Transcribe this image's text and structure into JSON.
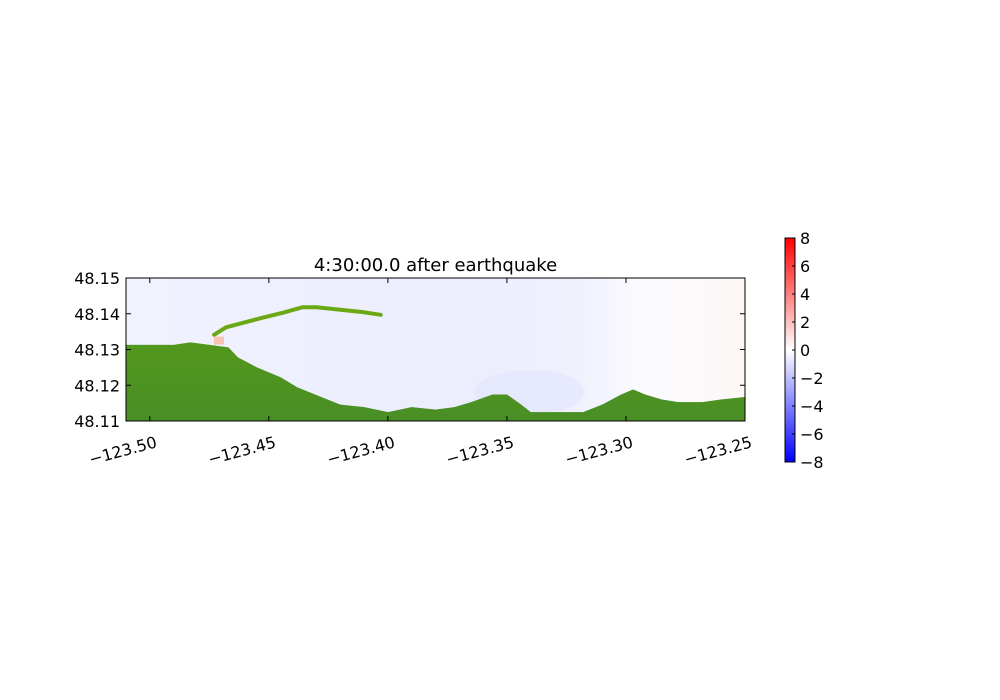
{
  "chart_data": {
    "type": "heatmap",
    "title": "4:30:00.0 after earthquake",
    "xlabel": "",
    "ylabel": "",
    "xlim": [
      -123.51,
      -123.25
    ],
    "ylim": [
      48.11,
      48.15
    ],
    "x_ticks": [
      -123.5,
      -123.45,
      -123.4,
      -123.35,
      -123.3,
      -123.25
    ],
    "x_tick_labels": [
      "−123.50",
      "−123.45",
      "−123.40",
      "−123.35",
      "−123.30",
      "−123.25"
    ],
    "y_ticks": [
      48.11,
      48.12,
      48.13,
      48.14,
      48.15
    ],
    "y_tick_labels": [
      "48.11",
      "48.12",
      "48.13",
      "48.14",
      "48.15"
    ],
    "colorbar": {
      "range": [
        -8,
        8
      ],
      "ticks": [
        8,
        6,
        4,
        2,
        0,
        -2,
        -4,
        -6,
        -8
      ],
      "tick_labels": [
        "8",
        "6",
        "4",
        "2",
        "0",
        "−2",
        "−4",
        "−6",
        "−8"
      ],
      "colormap": [
        "#0000ff",
        "#ffffff",
        "#ff0000"
      ]
    },
    "land_color": "#6aa814",
    "land_dark_color": "#2e7d32",
    "coastline": [
      [
        -123.51,
        48.1313
      ],
      [
        -123.49,
        48.1313
      ],
      [
        -123.483,
        48.132
      ],
      [
        -123.475,
        48.1313
      ],
      [
        -123.467,
        48.1306
      ],
      [
        -123.463,
        48.1278
      ],
      [
        -123.455,
        48.125
      ],
      [
        -123.445,
        48.1222
      ],
      [
        -123.438,
        48.1194
      ],
      [
        -123.428,
        48.1167
      ],
      [
        -123.42,
        48.1146
      ],
      [
        -123.41,
        48.1139
      ],
      [
        -123.4,
        48.1125
      ],
      [
        -123.39,
        48.1139
      ],
      [
        -123.38,
        48.1132
      ],
      [
        -123.372,
        48.1139
      ],
      [
        -123.365,
        48.1153
      ],
      [
        -123.356,
        48.1174
      ],
      [
        -123.35,
        48.1174
      ],
      [
        -123.344,
        48.1146
      ],
      [
        -123.34,
        48.1125
      ],
      [
        -123.33,
        48.1125
      ],
      [
        -123.318,
        48.1125
      ],
      [
        -123.31,
        48.1146
      ],
      [
        -123.302,
        48.1174
      ],
      [
        -123.297,
        48.1188
      ],
      [
        -123.292,
        48.1174
      ],
      [
        -123.285,
        48.116
      ],
      [
        -123.278,
        48.1153
      ],
      [
        -123.268,
        48.1153
      ],
      [
        -123.26,
        48.116
      ],
      [
        -123.25,
        48.1167
      ]
    ],
    "spit": [
      [
        -123.473,
        48.1341
      ],
      [
        -123.468,
        48.1362
      ],
      [
        -123.46,
        48.1376
      ],
      [
        -123.452,
        48.139
      ],
      [
        -123.444,
        48.1403
      ],
      [
        -123.436,
        48.1418
      ],
      [
        -123.43,
        48.1418
      ],
      [
        -123.42,
        48.1411
      ],
      [
        -123.41,
        48.1404
      ],
      [
        -123.403,
        48.1397
      ]
    ],
    "anomaly_patch": {
      "x": -123.471,
      "y": 48.1325,
      "value": 1.5
    }
  }
}
